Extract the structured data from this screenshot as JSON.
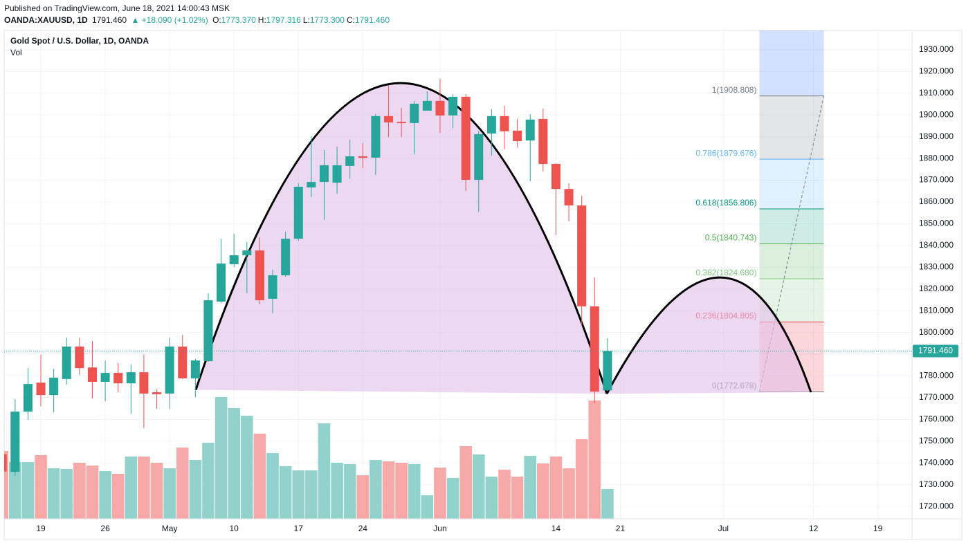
{
  "header": {
    "published": "Published on TradingView.com, June 18, 2021 14:00:43 MSK",
    "symbol": "OANDA:XAUUSD, 1D",
    "last": "1791.460",
    "change": "▲ +18.090 (+1.02%)",
    "ohlc": [
      {
        "label": "O:",
        "value": "1773.370"
      },
      {
        "label": "H:",
        "value": "1797.316"
      },
      {
        "label": "L:",
        "value": "1773.300"
      },
      {
        "label": "C:",
        "value": "1791.460"
      }
    ]
  },
  "chart_data": {
    "type": "candlestick",
    "title": "Gold Spot / U.S. Dollar, 1D, OANDA",
    "volume_label": "Vol",
    "up_color": "#26a69a",
    "down_color": "#ef5350",
    "up_volume_color": "#92d2cc",
    "down_volume_color": "#f7a9a7",
    "x": [
      0,
      1,
      2,
      3,
      4,
      5,
      6,
      7,
      8,
      9,
      10,
      11,
      12,
      13,
      14,
      15,
      16,
      17,
      18,
      19,
      20,
      21,
      22,
      23,
      24,
      25,
      26,
      27,
      28,
      29,
      30,
      31,
      32,
      33,
      34,
      35,
      36,
      37,
      38,
      39,
      40,
      41,
      42,
      43,
      44,
      45,
      46,
      47
    ],
    "open": [
      1744,
      1735.9,
      1763.6,
      1776.9,
      1771.2,
      1778.6,
      1793.5,
      1783.9,
      1777.3,
      1781.4,
      1776.6,
      1781.7,
      1772.5,
      1771.9,
      1793.5,
      1778.9,
      1786.8,
      1814.2,
      1831.4,
      1835.5,
      1837.7,
      1815.5,
      1826.3,
      1843.1,
      1866.7,
      1869.2,
      1868.9,
      1876.6,
      1881.0,
      1880.4,
      1899.5,
      1896.9,
      1896.3,
      1902.0,
      1906.5,
      1899.8,
      1908.4,
      1870.2,
      1891.5,
      1899.5,
      1892.8,
      1888.3,
      1898.2,
      1877.5,
      1866.0,
      1858.4,
      1812.0,
      1773.37
    ],
    "high": [
      1746,
      1769.3,
      1783.6,
      1789.7,
      1783.3,
      1797.6,
      1797.6,
      1796.0,
      1787.0,
      1785.9,
      1785.2,
      1789.7,
      1773.8,
      1797.6,
      1798.9,
      1787.8,
      1818.0,
      1843.1,
      1845.4,
      1841.5,
      1843.8,
      1828.8,
      1846.3,
      1868.6,
      1890.2,
      1883.9,
      1885.5,
      1888.6,
      1887.0,
      1900.4,
      1913.5,
      1903.3,
      1906.5,
      1910.9,
      1916.6,
      1909.6,
      1909.6,
      1892.5,
      1902.6,
      1904.2,
      1898.2,
      1900.4,
      1903.0,
      1877.8,
      1868.6,
      1862.9,
      1825.3,
      1797.316
    ],
    "low": [
      1734,
      1734.0,
      1759.8,
      1766.1,
      1763.3,
      1776.0,
      1780.5,
      1769.6,
      1768.4,
      1772.5,
      1762.6,
      1756.0,
      1764.9,
      1764.9,
      1778.6,
      1770.3,
      1786.5,
      1813.5,
      1830.1,
      1818.0,
      1812.9,
      1808.8,
      1825.6,
      1842.2,
      1862.2,
      1851.7,
      1863.8,
      1870.8,
      1875.6,
      1872.4,
      1889.9,
      1889.9,
      1882.0,
      1902.0,
      1891.8,
      1894.0,
      1865.1,
      1855.5,
      1881.3,
      1884.2,
      1885.1,
      1869.5,
      1874.0,
      1844.7,
      1851.1,
      1803.4,
      1767.4,
      1773.3
    ],
    "close": [
      1736,
      1763.6,
      1776.3,
      1771.2,
      1779.2,
      1793.5,
      1783.6,
      1777.3,
      1781.4,
      1776.6,
      1781.7,
      1771.9,
      1771.6,
      1793.5,
      1778.9,
      1787.1,
      1814.8,
      1831.7,
      1835.5,
      1837.7,
      1814.8,
      1826.3,
      1843.1,
      1867.0,
      1869.2,
      1876.9,
      1876.9,
      1881.0,
      1880.3,
      1899.5,
      1896.6,
      1896.3,
      1905.2,
      1906.5,
      1899.8,
      1908.4,
      1870.2,
      1891.2,
      1899.5,
      1892.5,
      1888.0,
      1897.9,
      1877.5,
      1866.0,
      1858.4,
      1812.0,
      1772.8,
      1791.46
    ],
    "volume": [
      98,
      82,
      82,
      92,
      73,
      72,
      81,
      77,
      69,
      65,
      90,
      90,
      81,
      73,
      103,
      85,
      110,
      176,
      160,
      149,
      123,
      95,
      76,
      70,
      70,
      138,
      81,
      79,
      63,
      85,
      83,
      81,
      79,
      34,
      74,
      59,
      105,
      93,
      61,
      71,
      61,
      91,
      80,
      90,
      73,
      115,
      171,
      43
    ],
    "xlim": [
      0.15,
      70.65
    ],
    "xticks": [
      {
        "value": 3,
        "label": "19"
      },
      {
        "value": 8,
        "label": "26"
      },
      {
        "value": 13,
        "label": "May"
      },
      {
        "value": 18,
        "label": "10"
      },
      {
        "value": 23,
        "label": "17"
      },
      {
        "value": 28,
        "label": "24"
      },
      {
        "value": 34,
        "label": "Jun"
      },
      {
        "value": 43,
        "label": "14"
      },
      {
        "value": 48,
        "label": "21"
      },
      {
        "value": 56,
        "label": "Jul"
      },
      {
        "value": 63,
        "label": "12"
      },
      {
        "value": 68,
        "label": "19"
      }
    ],
    "ylim": [
      1714.3,
      1938.9
    ],
    "yticks": [
      {
        "value": 1720,
        "label": "1720.000"
      },
      {
        "value": 1730,
        "label": "1730.000"
      },
      {
        "value": 1740,
        "label": "1740.000"
      },
      {
        "value": 1750,
        "label": "1750.000"
      },
      {
        "value": 1760,
        "label": "1760.000"
      },
      {
        "value": 1770,
        "label": "1770.000"
      },
      {
        "value": 1780,
        "label": "1780.000"
      },
      {
        "value": 1790,
        "label": "1790.000"
      },
      {
        "value": 1800,
        "label": "1800.000"
      },
      {
        "value": 1810,
        "label": "1810.000"
      },
      {
        "value": 1820,
        "label": "1820.000"
      },
      {
        "value": 1830,
        "label": "1830.000"
      },
      {
        "value": 1840,
        "label": "1840.000"
      },
      {
        "value": 1850,
        "label": "1850.000"
      },
      {
        "value": 1860,
        "label": "1860.000"
      },
      {
        "value": 1870,
        "label": "1870.000"
      },
      {
        "value": 1880,
        "label": "1880.000"
      },
      {
        "value": 1890,
        "label": "1890.000"
      },
      {
        "value": 1900,
        "label": "1900.000"
      },
      {
        "value": 1910,
        "label": "1910.000"
      },
      {
        "value": 1920,
        "label": "1920.000"
      },
      {
        "value": 1930,
        "label": "1930.000"
      }
    ],
    "grid": true,
    "last_price": {
      "value": 1791.46,
      "label": "1791.460"
    },
    "patterns": {
      "color": "#e1bee7",
      "stroke": "#000000",
      "arcs": [
        [
          [
            15.03,
            1773.6
          ],
          [
            30.99,
            1914.7
          ],
          [
            46.95,
            1771.8
          ]
        ],
        [
          [
            46.95,
            1771.8
          ],
          [
            55.71,
            1825.3
          ],
          [
            62.8,
            1772.5
          ]
        ]
      ]
    },
    "fib": {
      "x": [
        58.8,
        63.8
      ],
      "extension_color": "#2962ff",
      "levels": [
        {
          "label": "1(1908.808)",
          "value": 1908.808,
          "color": "#787b86"
        },
        {
          "label": "0.786(1879.676)",
          "value": 1879.676,
          "color": "#64b5f6"
        },
        {
          "label": "0.618(1856.806)",
          "value": 1856.806,
          "color": "#089981"
        },
        {
          "label": "0.5(1840.743)",
          "value": 1840.743,
          "color": "#4caf50"
        },
        {
          "label": "0.382(1824.680)",
          "value": 1824.68,
          "color": "#81c784"
        },
        {
          "label": "0.236(1804.805)",
          "value": 1804.805,
          "color": "#f23645"
        },
        {
          "label": "0(1772.678)",
          "value": 1772.678,
          "color": "#787b86"
        }
      ]
    }
  }
}
